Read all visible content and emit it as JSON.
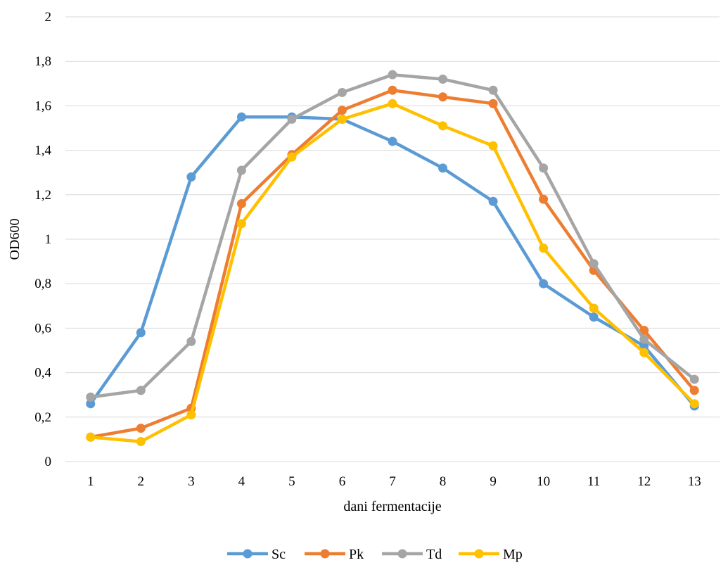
{
  "chart_data": {
    "type": "line",
    "title": "",
    "xlabel": "dani fermentacije",
    "ylabel": "OD600",
    "x": [
      "1",
      "2",
      "3",
      "4",
      "5",
      "6",
      "7",
      "8",
      "9",
      "10",
      "11",
      "12",
      "13"
    ],
    "ylim": [
      0,
      2
    ],
    "yticks": [
      "0",
      "0,2",
      "0,4",
      "0,6",
      "0,8",
      "1",
      "1,2",
      "1,4",
      "1,6",
      "1,8",
      "2"
    ],
    "grid": true,
    "legend_position": "bottom",
    "series": [
      {
        "name": "Sc",
        "color": "#5B9BD5",
        "values": [
          0.26,
          0.58,
          1.28,
          1.55,
          1.55,
          1.54,
          1.44,
          1.32,
          1.17,
          0.8,
          0.65,
          0.52,
          0.25
        ]
      },
      {
        "name": "Pk",
        "color": "#ED7D31",
        "values": [
          0.11,
          0.15,
          0.24,
          1.16,
          1.38,
          1.58,
          1.67,
          1.64,
          1.61,
          1.18,
          0.86,
          0.59,
          0.32
        ]
      },
      {
        "name": "Td",
        "color": "#A5A5A5",
        "values": [
          0.29,
          0.32,
          0.54,
          1.31,
          1.54,
          1.66,
          1.74,
          1.72,
          1.67,
          1.32,
          0.89,
          0.55,
          0.37
        ]
      },
      {
        "name": "Mp",
        "color": "#FFC000",
        "values": [
          0.11,
          0.09,
          0.21,
          1.07,
          1.37,
          1.54,
          1.61,
          1.51,
          1.42,
          0.96,
          0.69,
          0.49,
          0.26
        ]
      }
    ]
  }
}
